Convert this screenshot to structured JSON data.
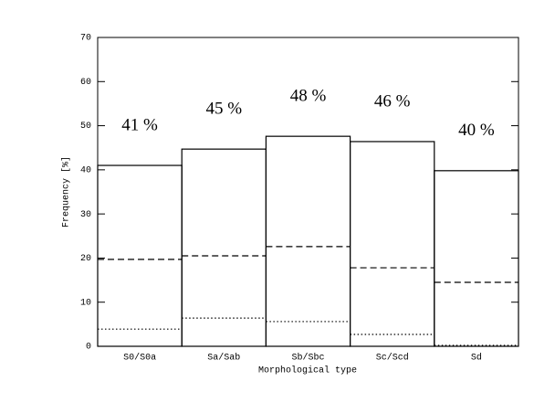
{
  "chart_data": {
    "type": "bar",
    "xlabel": "Morphological type",
    "ylabel": "Frequency [%]",
    "categories": [
      "S0/S0a",
      "Sa/Sab",
      "Sb/Sbc",
      "Sc/Scd",
      "Sd"
    ],
    "series": [
      {
        "color": "#000000",
        "dash": "solid",
        "values": [
          41,
          44.7,
          47.6,
          46.4,
          39.8
        ],
        "value_labels": [
          "41 %",
          "45 %",
          "48 %",
          "46 %",
          "40 %"
        ]
      },
      {
        "color": "#000000",
        "dash": "dashed",
        "values": [
          19.7,
          20.5,
          22.6,
          17.8,
          14.5
        ]
      },
      {
        "color": "#000000",
        "dash": "dotted",
        "values": [
          3.9,
          6.4,
          5.6,
          2.7,
          0.2
        ]
      }
    ],
    "ylim": [
      0,
      70
    ],
    "yticks": [
      0,
      10,
      20,
      30,
      40,
      50,
      60,
      70
    ]
  }
}
